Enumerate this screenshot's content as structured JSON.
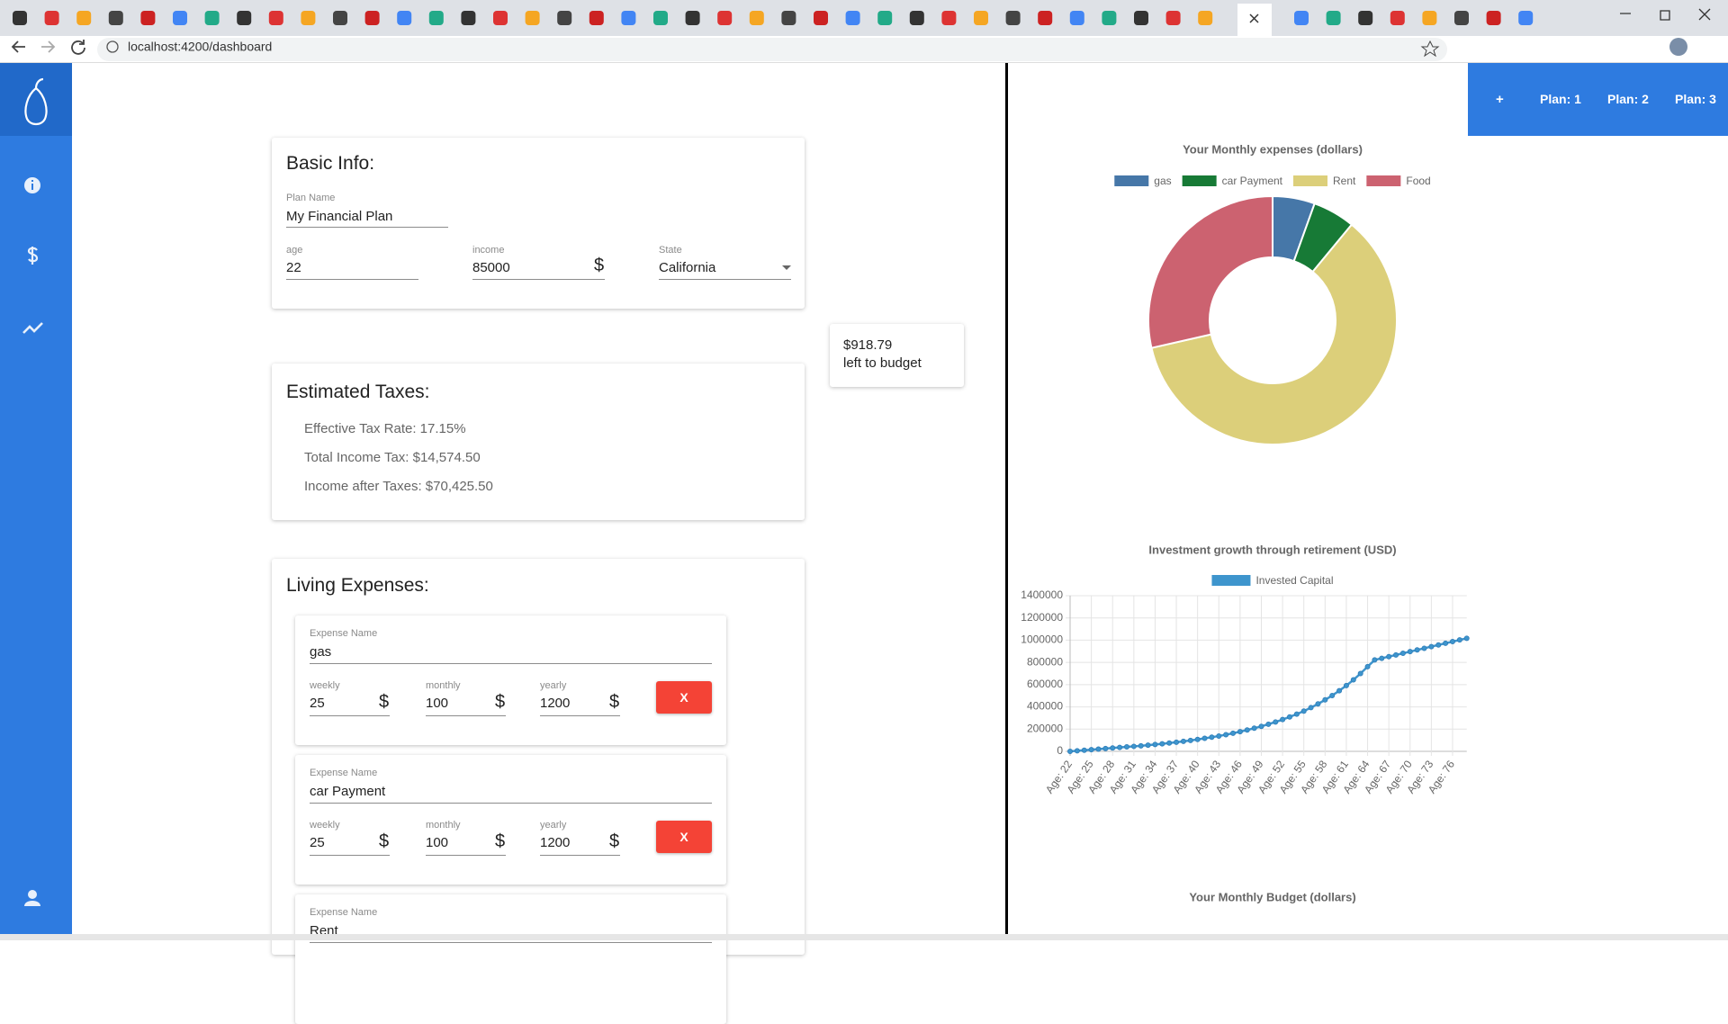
{
  "browser": {
    "url": "localhost:4200/dashboard"
  },
  "plans": {
    "add": "+",
    "items": [
      "Plan: 1",
      "Plan: 2",
      "Plan: 3"
    ]
  },
  "basic_info": {
    "title": "Basic Info:",
    "plan_name_label": "Plan Name",
    "plan_name": "My Financial Plan",
    "age_label": "age",
    "age": "22",
    "income_label": "income",
    "income": "85000",
    "currency": "$",
    "state_label": "State",
    "state": "California"
  },
  "budget_left": {
    "amount": "$918.79",
    "label": "left to budget"
  },
  "taxes": {
    "title": "Estimated Taxes:",
    "lines": [
      "Effective Tax Rate: 17.15%",
      "Total Income Tax: $14,574.50",
      "Income after Taxes: $70,425.50"
    ]
  },
  "living_expenses": {
    "title": "Living Expenses:",
    "items": [
      {
        "name_label": "Expense Name",
        "name": "gas",
        "weekly_label": "weekly",
        "weekly": "25",
        "monthly_label": "monthly",
        "monthly": "100",
        "yearly_label": "yearly",
        "yearly": "1200",
        "currency": "$",
        "remove": "X"
      },
      {
        "name_label": "Expense Name",
        "name": "car Payment",
        "weekly_label": "weekly",
        "weekly": "25",
        "monthly_label": "monthly",
        "monthly": "100",
        "yearly_label": "yearly",
        "yearly": "1200",
        "currency": "$",
        "remove": "X"
      },
      {
        "name_label": "Expense Name",
        "name": "Rent"
      }
    ]
  },
  "chart_data": [
    {
      "type": "pie",
      "title": "Your Monthly expenses (dollars)",
      "categories": [
        "gas",
        "car Payment",
        "Rent",
        "Food"
      ],
      "values": [
        100,
        100,
        1100,
        520
      ],
      "colors": [
        "#4677a8",
        "#177a36",
        "#dccf7a",
        "#cc6270"
      ]
    },
    {
      "type": "line",
      "title": "Investment growth through retirement (USD)",
      "categories": [
        "Age: 22",
        null,
        null,
        "Age: 25",
        null,
        null,
        "Age: 28",
        null,
        null,
        "Age: 31",
        null,
        null,
        "Age: 34",
        null,
        null,
        "Age: 37",
        null,
        null,
        "Age: 40",
        null,
        null,
        "Age: 43",
        null,
        null,
        "Age: 46",
        null,
        null,
        "Age: 49",
        null,
        null,
        "Age: 52",
        null,
        null,
        "Age: 55",
        null,
        null,
        "Age: 58",
        null,
        null,
        "Age: 61",
        null,
        null,
        "Age: 64",
        null,
        null,
        "Age: 67",
        null,
        null,
        "Age: 70",
        null,
        null,
        "Age: 73",
        null,
        null,
        "Age: 76",
        null,
        null
      ],
      "series": [
        {
          "name": "Invested Capital",
          "color": "#3e95cd",
          "values": [
            0,
            5000,
            10000,
            15000,
            20000,
            25000,
            30000,
            35000,
            40000,
            45000,
            50000,
            56000,
            62000,
            68000,
            75000,
            82000,
            90000,
            98000,
            107000,
            117000,
            127000,
            138000,
            150000,
            163000,
            177000,
            192000,
            208000,
            225000,
            244000,
            264000,
            286000,
            310000,
            335000,
            362000,
            393000,
            427000,
            463000,
            502000,
            545000,
            592000,
            643000,
            700000,
            762000,
            822000,
            837000,
            852000,
            867000,
            882000,
            897000,
            912000,
            927000,
            942000,
            957000,
            972000,
            987000,
            1002000,
            1017000
          ]
        }
      ],
      "ylim": [
        0,
        1400000
      ],
      "yticks": [
        0,
        200000,
        400000,
        600000,
        800000,
        1000000,
        1200000,
        1400000
      ],
      "grid": true
    },
    {
      "type": "bar",
      "title": "Your Monthly Budget (dollars)"
    }
  ]
}
